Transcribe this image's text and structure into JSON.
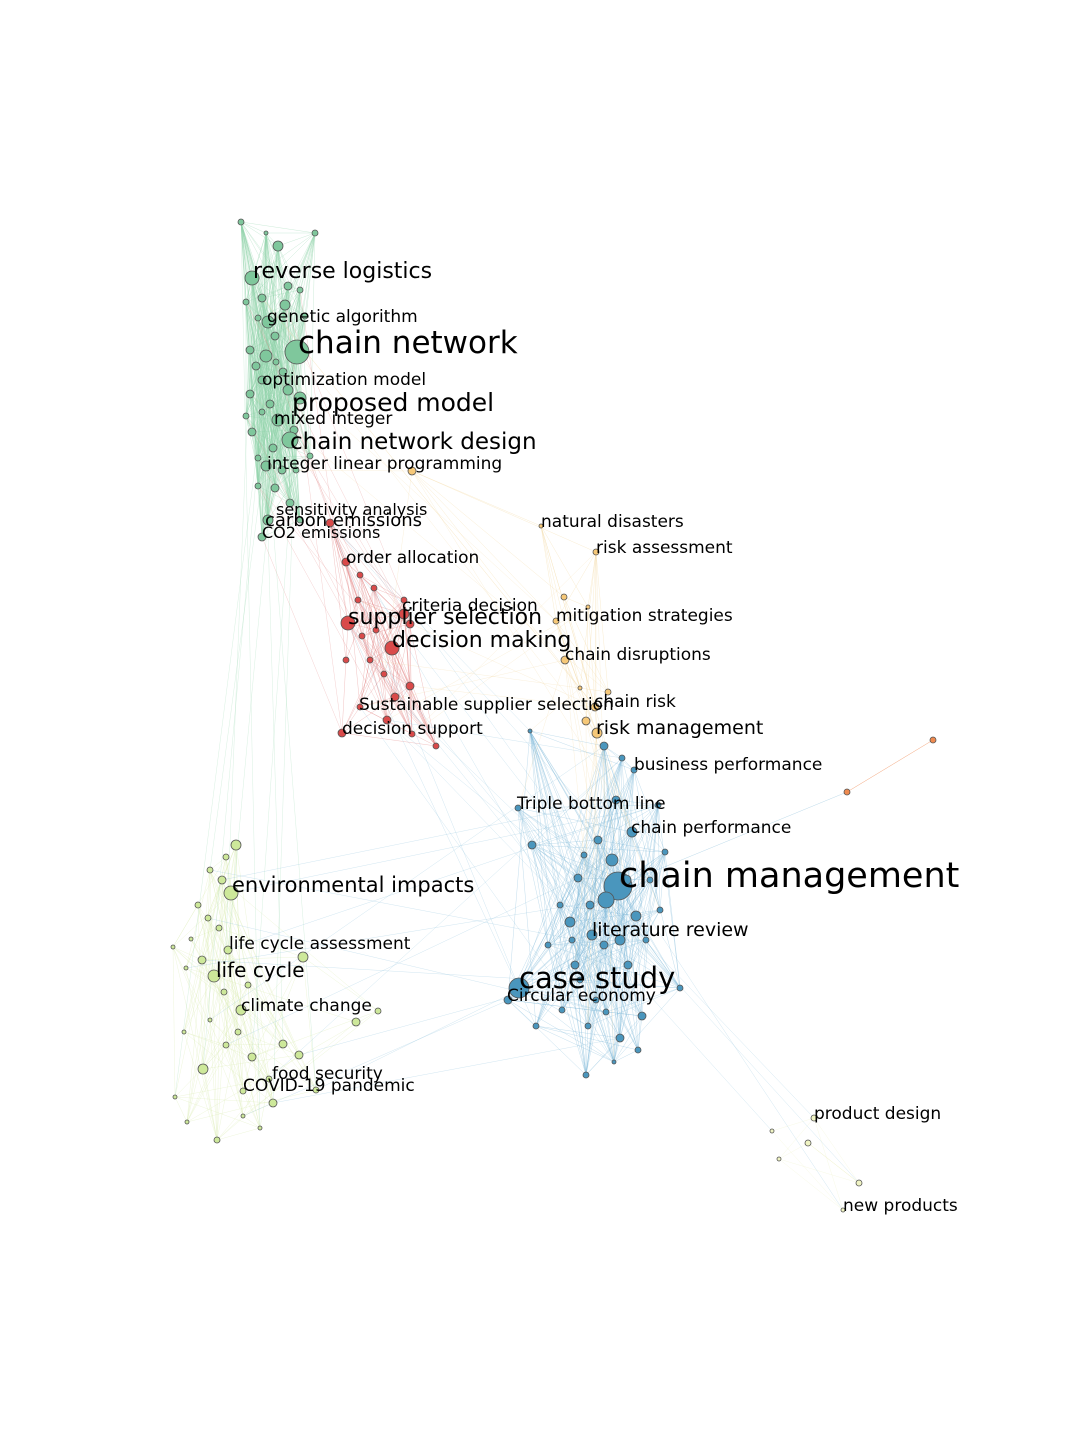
{
  "clusters": {
    "green": {
      "fill": "#7fc79c",
      "edge": "#8fd3a8"
    },
    "red": {
      "fill": "#d94a4a",
      "edge": "#e07a7a"
    },
    "yellow": {
      "fill": "#f6c878",
      "edge": "#f2d59a"
    },
    "blue": {
      "fill": "#4a96bd",
      "edge": "#7ab6d6"
    },
    "lime": {
      "fill": "#cde89a",
      "edge": "#d9ecb0"
    },
    "orange": {
      "fill": "#ef8a4f",
      "edge": "#f3a57a"
    },
    "pale": {
      "fill": "#f0f4c3",
      "edge": "#eef2c8"
    }
  },
  "labels": [
    {
      "id": "reverse-logistics",
      "text": "reverse logistics"
    },
    {
      "id": "genetic-algorithm",
      "text": "genetic algorithm"
    },
    {
      "id": "chain-network",
      "text": "chain network"
    },
    {
      "id": "optimization-model",
      "text": "optimization model"
    },
    {
      "id": "proposed-model",
      "text": "proposed model"
    },
    {
      "id": "mixed-integer",
      "text": "mixed integer"
    },
    {
      "id": "chain-network-design",
      "text": "chain network design"
    },
    {
      "id": "integer-linear-programming",
      "text": "integer linear programming"
    },
    {
      "id": "sensitivity-analysis",
      "text": "sensitivity analysis"
    },
    {
      "id": "carbon-emissions",
      "text": "carbon emissions"
    },
    {
      "id": "co2-emissions",
      "text": "CO2 emissions"
    },
    {
      "id": "order-allocation",
      "text": "order allocation"
    },
    {
      "id": "criteria-decision",
      "text": "criteria decision"
    },
    {
      "id": "supplier-selection",
      "text": "supplier selection"
    },
    {
      "id": "decision-making",
      "text": "decision making"
    },
    {
      "id": "sustainable-supplier-selection",
      "text": "Sustainable supplier selection"
    },
    {
      "id": "decision-support",
      "text": "decision support"
    },
    {
      "id": "natural-disasters",
      "text": "natural disasters"
    },
    {
      "id": "risk-assessment",
      "text": "risk assessment"
    },
    {
      "id": "mitigation-strategies",
      "text": "mitigation strategies"
    },
    {
      "id": "chain-disruptions",
      "text": "chain disruptions"
    },
    {
      "id": "chain-risk",
      "text": "chain risk"
    },
    {
      "id": "risk-management",
      "text": "risk management"
    },
    {
      "id": "business-performance",
      "text": "business performance"
    },
    {
      "id": "triple-bottom-line",
      "text": "Triple bottom line"
    },
    {
      "id": "chain-performance",
      "text": "chain performance"
    },
    {
      "id": "chain-management",
      "text": "chain management"
    },
    {
      "id": "literature-review",
      "text": "literature review"
    },
    {
      "id": "case-study",
      "text": "case study"
    },
    {
      "id": "circular-economy",
      "text": "Circular economy"
    },
    {
      "id": "environmental-impacts",
      "text": "environmental impacts"
    },
    {
      "id": "life-cycle-assessment",
      "text": "life cycle assessment"
    },
    {
      "id": "life-cycle",
      "text": "life cycle"
    },
    {
      "id": "climate-change",
      "text": "climate change"
    },
    {
      "id": "food-security",
      "text": "food security"
    },
    {
      "id": "covid-19-pandemic",
      "text": "COVID-19 pandemic"
    },
    {
      "id": "product-design",
      "text": "product design"
    },
    {
      "id": "new-products",
      "text": "new products"
    }
  ]
}
